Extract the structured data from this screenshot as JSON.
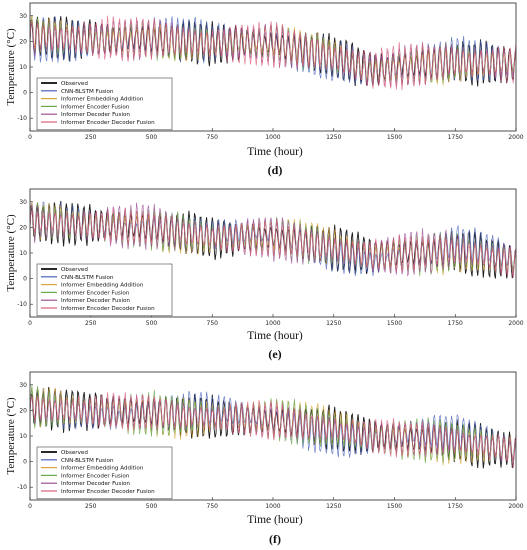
{
  "chart_data": [
    {
      "panel": "(d)",
      "type": "line",
      "xlabel": "Time (hour)",
      "ylabel": "Temperature (°C)",
      "xlim": [
        0,
        2000
      ],
      "ylim": [
        -15,
        35
      ],
      "xticks": [
        0,
        250,
        500,
        750,
        1000,
        1250,
        1500,
        1750,
        2000
      ],
      "yticks": [
        -10,
        0,
        10,
        20,
        30
      ],
      "legend_position": "lower-left",
      "series": [
        {
          "name": "Observed",
          "color": "#111111"
        },
        {
          "name": "CNN-BLSTM Fusion",
          "color": "#4a63b8"
        },
        {
          "name": "Informer Embedding Addition",
          "color": "#d6a63a"
        },
        {
          "name": "Informer Encoder Fusion",
          "color": "#6aa84f"
        },
        {
          "name": "Informer Decoder Fusion",
          "color": "#9b4f96"
        },
        {
          "name": "Informer Encoder Decoder Fusion",
          "color": "#d95f7a"
        }
      ],
      "trend": {
        "x": [
          0,
          250,
          500,
          750,
          1000,
          1250,
          1400,
          1600,
          1750,
          2000
        ],
        "y": [
          22,
          21,
          21,
          19,
          19,
          14,
          9,
          11,
          12,
          11
        ]
      },
      "amplitude": 8
    },
    {
      "panel": "(e)",
      "type": "line",
      "xlabel": "Time (hour)",
      "ylabel": "Temperature (°C)",
      "xlim": [
        0,
        2000
      ],
      "ylim": [
        -15,
        35
      ],
      "xticks": [
        0,
        250,
        500,
        750,
        1000,
        1250,
        1500,
        1750,
        2000
      ],
      "yticks": [
        -10,
        0,
        10,
        20,
        30
      ],
      "legend_position": "lower-left",
      "series": [
        {
          "name": "Observed",
          "color": "#111111"
        },
        {
          "name": "CNN-BLSTM Fusion",
          "color": "#4a63b8"
        },
        {
          "name": "Informer Embedding Addition",
          "color": "#d6a63a"
        },
        {
          "name": "Informer Encoder Fusion",
          "color": "#6aa84f"
        },
        {
          "name": "Informer Decoder Fusion",
          "color": "#9b4f96"
        },
        {
          "name": "Informer Encoder Decoder Fusion",
          "color": "#d95f7a"
        }
      ],
      "trend": {
        "x": [
          0,
          250,
          500,
          750,
          1000,
          1250,
          1400,
          1600,
          1750,
          2000
        ],
        "y": [
          22,
          21,
          20,
          16,
          16,
          12,
          9,
          10,
          11,
          6
        ]
      },
      "amplitude": 8
    },
    {
      "panel": "(f)",
      "type": "line",
      "xlabel": "Time (hour)",
      "ylabel": "Temperature (°C)",
      "xlim": [
        0,
        2000
      ],
      "ylim": [
        -15,
        35
      ],
      "xticks": [
        0,
        250,
        500,
        750,
        1000,
        1250,
        1500,
        1750,
        2000
      ],
      "yticks": [
        -10,
        0,
        10,
        20,
        30
      ],
      "legend_position": "lower-left",
      "series": [
        {
          "name": "Observed",
          "color": "#111111"
        },
        {
          "name": "CNN-BLSTM Fusion",
          "color": "#4a63b8"
        },
        {
          "name": "Informer Embedding Addition",
          "color": "#d6a63a"
        },
        {
          "name": "Informer Encoder Fusion",
          "color": "#6aa84f"
        },
        {
          "name": "Informer Decoder Fusion",
          "color": "#9b4f96"
        },
        {
          "name": "Informer Encoder Decoder Fusion",
          "color": "#d95f7a"
        }
      ],
      "trend": {
        "x": [
          0,
          250,
          500,
          750,
          1000,
          1250,
          1400,
          1600,
          1750,
          2000
        ],
        "y": [
          21,
          20,
          19,
          17,
          16,
          13,
          10,
          9,
          8,
          4
        ]
      },
      "amplitude": 8
    }
  ]
}
